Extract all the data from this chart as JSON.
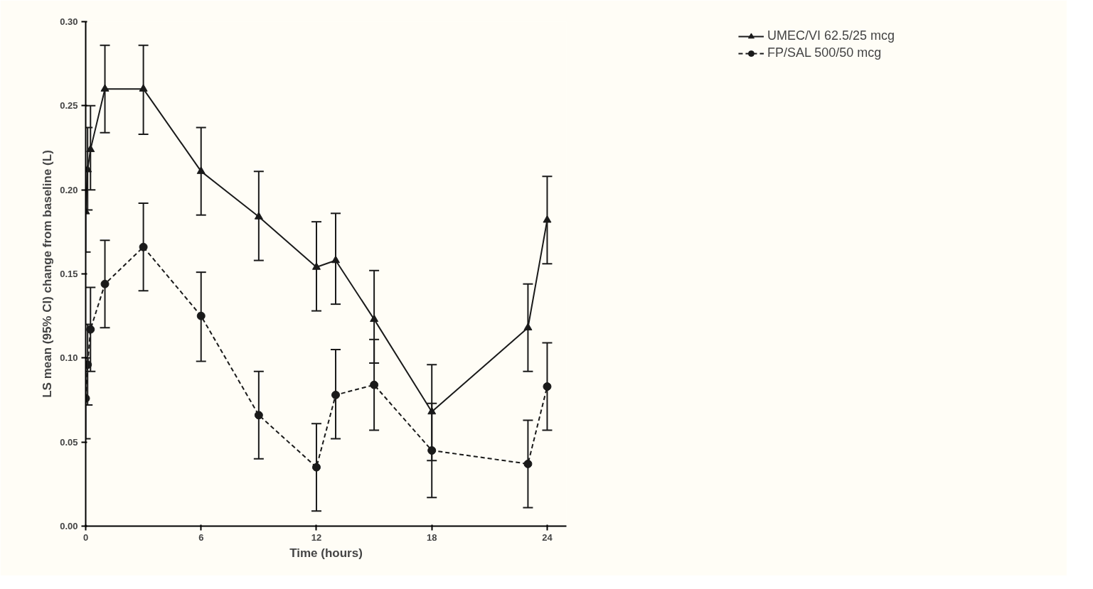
{
  "chart_data": {
    "type": "line",
    "xlabel": "Time (hours)",
    "ylabel": "LS mean (95% CI) change from baseline (L)",
    "x": [
      0,
      0.1,
      0.25,
      1,
      3,
      6,
      9,
      12,
      13,
      15,
      18,
      23,
      24
    ],
    "series": [
      {
        "name": "UMEC/VI 62.5/25 mcg",
        "color": "#1a1a1a",
        "marker": "triangle",
        "line_style": "solid",
        "values": [
          0.187,
          0.212,
          0.224,
          0.26,
          0.26,
          0.211,
          0.184,
          0.154,
          0.158,
          0.123,
          0.068,
          0.118,
          0.182
        ],
        "errors": [
          [
            0.163,
            0.212
          ],
          [
            0.188,
            0.237
          ],
          [
            0.2,
            0.25
          ],
          [
            0.234,
            0.286
          ],
          [
            0.233,
            0.286
          ],
          [
            0.185,
            0.237
          ],
          [
            0.158,
            0.211
          ],
          [
            0.128,
            0.181
          ],
          [
            0.132,
            0.186
          ],
          [
            0.097,
            0.152
          ],
          [
            0.039,
            0.096
          ],
          [
            0.092,
            0.144
          ],
          [
            0.156,
            0.208
          ]
        ]
      },
      {
        "name": "FP/SAL 500/50 mcg",
        "color": "#1a1a1a",
        "marker": "circle",
        "line_style": "dashed",
        "values": [
          0.076,
          0.096,
          0.117,
          0.144,
          0.166,
          0.125,
          0.066,
          0.035,
          0.078,
          0.084,
          0.045,
          0.037,
          0.083
        ],
        "errors": [
          [
            0.052,
            0.1
          ],
          [
            0.072,
            0.12
          ],
          [
            0.092,
            0.142
          ],
          [
            0.118,
            0.17
          ],
          [
            0.14,
            0.192
          ],
          [
            0.098,
            0.151
          ],
          [
            0.04,
            0.092
          ],
          [
            0.009,
            0.061
          ],
          [
            0.052,
            0.105
          ],
          [
            0.057,
            0.111
          ],
          [
            0.017,
            0.073
          ],
          [
            0.011,
            0.063
          ],
          [
            0.057,
            0.109
          ]
        ]
      }
    ],
    "xlim": [
      0,
      25
    ],
    "xticks": [
      0,
      6,
      12,
      18,
      24
    ],
    "ylim": [
      0,
      0.3
    ],
    "yticks": [
      {
        "value": 0,
        "label": "0.00"
      },
      {
        "value": 0.05,
        "label": "0.05"
      },
      {
        "value": 0.1,
        "label": "0.10"
      },
      {
        "value": 0.15,
        "label": "0.15"
      },
      {
        "value": 0.2,
        "label": "0.20"
      },
      {
        "value": 0.25,
        "label": "0.25"
      },
      {
        "value": 0.3,
        "label": "0.30"
      }
    ],
    "grid": false,
    "legend": "top right"
  }
}
